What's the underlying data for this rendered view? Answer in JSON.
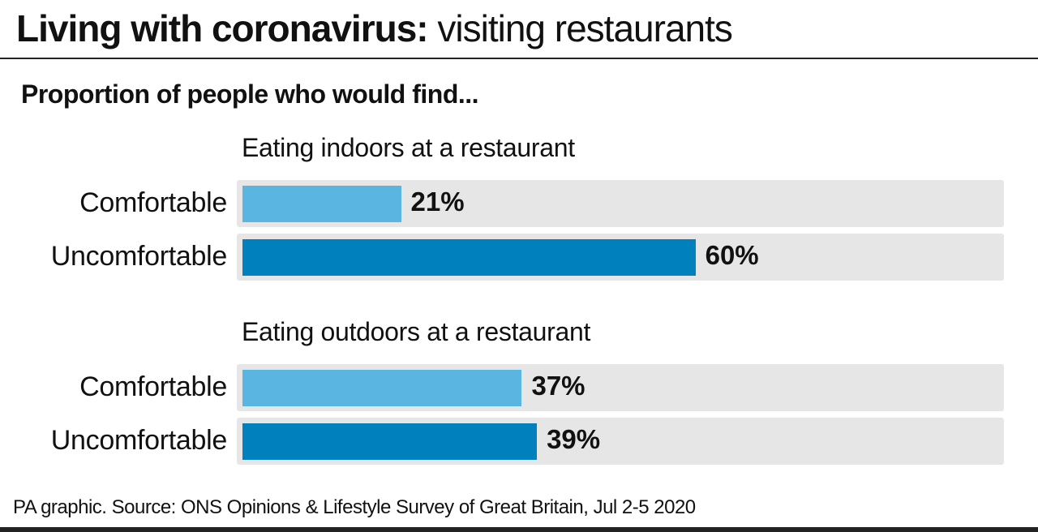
{
  "header": {
    "title_bold": "Living with coronavirus:",
    "title_light": " visiting restaurants"
  },
  "chart_data": {
    "type": "bar",
    "orientation": "horizontal",
    "title": "Living with coronavirus: visiting restaurants",
    "subtitle": "Proportion of people who would find...",
    "xlim": [
      0,
      100
    ],
    "unit": "%",
    "groups": [
      {
        "name": "Eating indoors at a restaurant",
        "categories": [
          "Comfortable",
          "Uncomfortable"
        ],
        "values": [
          21,
          60
        ],
        "labels": [
          "21%",
          "60%"
        ]
      },
      {
        "name": "Eating outdoors at a restaurant",
        "categories": [
          "Comfortable",
          "Uncomfortable"
        ],
        "values": [
          37,
          39
        ],
        "labels": [
          "37%",
          "39%"
        ]
      }
    ],
    "colors": {
      "Comfortable": "#5ab6e0",
      "Uncomfortable": "#0080bd",
      "track": "#e6e6e6"
    }
  },
  "footer": "PA graphic. Source: ONS Opinions & Lifestyle Survey of Great Britain, Jul 2-5 2020"
}
